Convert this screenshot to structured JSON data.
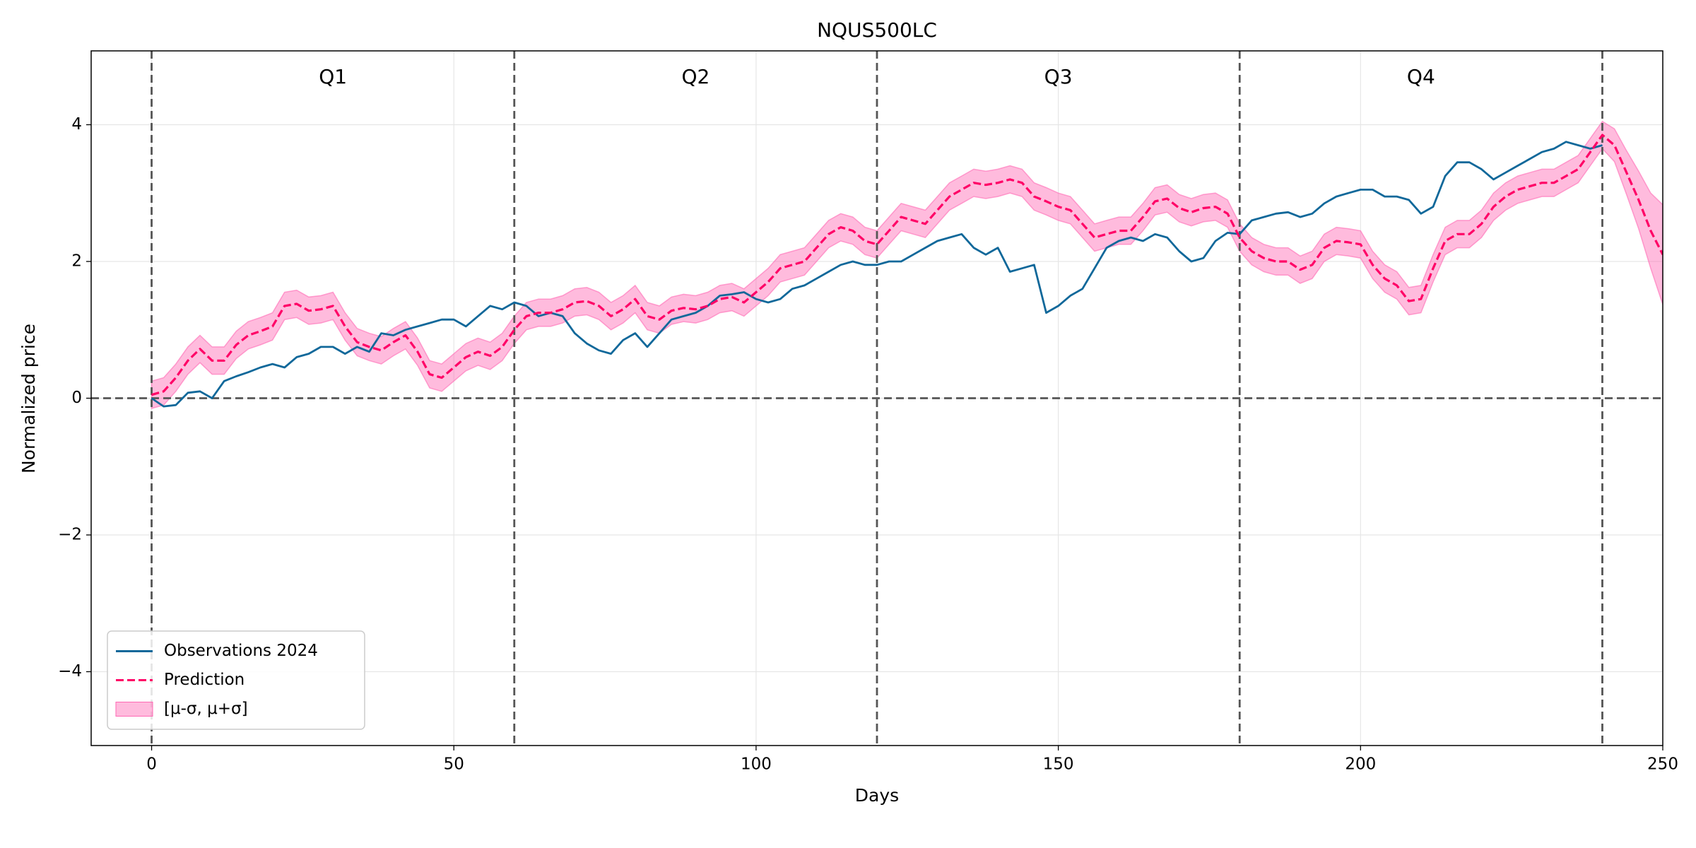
{
  "chart_data": {
    "type": "line",
    "title": "NQUS500LC",
    "xlabel": "Days",
    "ylabel": "Normalized price",
    "xlim": [
      -10,
      250
    ],
    "ylim": [
      -5.08,
      5.08
    ],
    "xticks": [
      0,
      50,
      100,
      150,
      200,
      250
    ],
    "yticks": [
      {
        "value": -4,
        "label": "−4"
      },
      {
        "value": -2,
        "label": "−2"
      },
      0,
      2,
      4
    ],
    "grid": true,
    "legend": "lower left",
    "vlines": [
      0,
      60,
      120,
      180,
      240
    ],
    "hline": 0,
    "annotations": [
      {
        "text": "Q1",
        "x": 30
      },
      {
        "text": "Q2",
        "x": 90
      },
      {
        "text": "Q3",
        "x": 150
      },
      {
        "text": "Q4",
        "x": 210
      }
    ],
    "series": [
      {
        "name": "Observations 2024",
        "color": "#10689a",
        "x": [
          0,
          2,
          4,
          6,
          8,
          10,
          12,
          14,
          16,
          18,
          20,
          22,
          24,
          26,
          28,
          30,
          32,
          34,
          36,
          38,
          40,
          42,
          44,
          46,
          48,
          50,
          52,
          54,
          56,
          58,
          60,
          62,
          64,
          66,
          68,
          70,
          72,
          74,
          76,
          78,
          80,
          82,
          84,
          86,
          88,
          90,
          92,
          94,
          96,
          98,
          100,
          102,
          104,
          106,
          108,
          110,
          112,
          114,
          116,
          118,
          120,
          122,
          124,
          126,
          128,
          130,
          132,
          134,
          136,
          138,
          140,
          142,
          144,
          146,
          148,
          150,
          152,
          154,
          156,
          158,
          160,
          162,
          164,
          166,
          168,
          170,
          172,
          174,
          176,
          178,
          180,
          182,
          184,
          186,
          188,
          190,
          192,
          194,
          196,
          198,
          200,
          202,
          204,
          206,
          208,
          210,
          212,
          214,
          216,
          218,
          220,
          222,
          224,
          226,
          228,
          230,
          232,
          234,
          236,
          238,
          240
        ],
        "values": [
          0.0,
          -0.12,
          -0.1,
          0.08,
          0.1,
          0.0,
          0.25,
          0.32,
          0.38,
          0.45,
          0.5,
          0.45,
          0.6,
          0.65,
          0.75,
          0.75,
          0.65,
          0.75,
          0.68,
          0.95,
          0.92,
          1.0,
          1.05,
          1.1,
          1.15,
          1.15,
          1.05,
          1.2,
          1.35,
          1.3,
          1.4,
          1.35,
          1.2,
          1.25,
          1.2,
          0.95,
          0.8,
          0.7,
          0.65,
          0.85,
          0.95,
          0.75,
          0.95,
          1.15,
          1.2,
          1.25,
          1.35,
          1.5,
          1.52,
          1.55,
          1.45,
          1.4,
          1.45,
          1.6,
          1.65,
          1.75,
          1.85,
          1.95,
          2.0,
          1.95,
          1.95,
          2.0,
          2.0,
          2.1,
          2.2,
          2.3,
          2.35,
          2.4,
          2.2,
          2.1,
          2.2,
          1.85,
          1.9,
          1.95,
          1.25,
          1.35,
          1.5,
          1.6,
          1.9,
          2.2,
          2.3,
          2.35,
          2.3,
          2.4,
          2.35,
          2.15,
          2.0,
          2.05,
          2.3,
          2.42,
          2.4,
          2.6,
          2.65,
          2.7,
          2.72,
          2.65,
          2.7,
          2.85,
          2.95,
          3.0,
          3.05,
          3.05,
          2.95,
          2.95,
          2.9,
          2.7,
          2.8,
          3.25,
          3.45,
          3.45,
          3.35,
          3.2,
          3.3,
          3.4,
          3.5,
          3.6,
          3.65,
          3.75,
          3.7,
          3.65,
          3.7
        ]
      },
      {
        "name": "Prediction",
        "color": "#ff0066",
        "x": [
          0,
          2,
          4,
          6,
          8,
          10,
          12,
          14,
          16,
          18,
          20,
          22,
          24,
          26,
          28,
          30,
          32,
          34,
          36,
          38,
          40,
          42,
          44,
          46,
          48,
          50,
          52,
          54,
          56,
          58,
          60,
          62,
          64,
          66,
          68,
          70,
          72,
          74,
          76,
          78,
          80,
          82,
          84,
          86,
          88,
          90,
          92,
          94,
          96,
          98,
          100,
          102,
          104,
          106,
          108,
          110,
          112,
          114,
          116,
          118,
          120,
          122,
          124,
          126,
          128,
          130,
          132,
          134,
          136,
          138,
          140,
          142,
          144,
          146,
          148,
          150,
          152,
          154,
          156,
          158,
          160,
          162,
          164,
          166,
          168,
          170,
          172,
          174,
          176,
          178,
          180,
          182,
          184,
          186,
          188,
          190,
          192,
          194,
          196,
          198,
          200,
          202,
          204,
          206,
          208,
          210,
          212,
          214,
          216,
          218,
          220,
          222,
          224,
          226,
          228,
          230,
          232,
          234,
          236,
          238,
          240,
          242,
          244,
          246,
          248,
          250
        ],
        "values": [
          0.05,
          0.1,
          0.3,
          0.55,
          0.72,
          0.55,
          0.55,
          0.78,
          0.92,
          0.98,
          1.05,
          1.35,
          1.38,
          1.28,
          1.3,
          1.35,
          1.05,
          0.82,
          0.75,
          0.7,
          0.82,
          0.92,
          0.68,
          0.35,
          0.3,
          0.45,
          0.6,
          0.68,
          0.62,
          0.75,
          1.0,
          1.2,
          1.25,
          1.25,
          1.3,
          1.4,
          1.42,
          1.35,
          1.2,
          1.3,
          1.45,
          1.2,
          1.15,
          1.28,
          1.32,
          1.3,
          1.35,
          1.45,
          1.48,
          1.4,
          1.55,
          1.7,
          1.9,
          1.95,
          2.0,
          2.2,
          2.4,
          2.5,
          2.45,
          2.3,
          2.25,
          2.45,
          2.65,
          2.6,
          2.55,
          2.75,
          2.95,
          3.05,
          3.15,
          3.12,
          3.15,
          3.2,
          3.15,
          2.95,
          2.88,
          2.8,
          2.75,
          2.55,
          2.35,
          2.4,
          2.45,
          2.45,
          2.65,
          2.88,
          2.92,
          2.78,
          2.72,
          2.78,
          2.8,
          2.7,
          2.35,
          2.15,
          2.05,
          2.0,
          2.0,
          1.88,
          1.95,
          2.2,
          2.3,
          2.28,
          2.25,
          1.95,
          1.75,
          1.65,
          1.42,
          1.45,
          1.9,
          2.3,
          2.4,
          2.4,
          2.55,
          2.8,
          2.95,
          3.05,
          3.1,
          3.15,
          3.15,
          3.25,
          3.35,
          3.6,
          3.85,
          3.7,
          3.3,
          2.9,
          2.45,
          2.1
        ],
        "sigma": [
          0.2,
          0.2,
          0.2,
          0.2,
          0.2,
          0.2,
          0.2,
          0.2,
          0.2,
          0.2,
          0.2,
          0.2,
          0.2,
          0.2,
          0.2,
          0.2,
          0.2,
          0.2,
          0.2,
          0.2,
          0.2,
          0.2,
          0.2,
          0.2,
          0.2,
          0.2,
          0.2,
          0.2,
          0.2,
          0.2,
          0.2,
          0.2,
          0.2,
          0.2,
          0.2,
          0.2,
          0.2,
          0.2,
          0.2,
          0.2,
          0.2,
          0.2,
          0.2,
          0.2,
          0.2,
          0.2,
          0.2,
          0.2,
          0.2,
          0.2,
          0.2,
          0.2,
          0.2,
          0.2,
          0.2,
          0.2,
          0.2,
          0.2,
          0.2,
          0.2,
          0.2,
          0.2,
          0.2,
          0.2,
          0.2,
          0.2,
          0.2,
          0.2,
          0.2,
          0.2,
          0.2,
          0.2,
          0.2,
          0.2,
          0.2,
          0.2,
          0.2,
          0.2,
          0.2,
          0.2,
          0.2,
          0.2,
          0.2,
          0.2,
          0.2,
          0.2,
          0.2,
          0.2,
          0.2,
          0.2,
          0.2,
          0.2,
          0.2,
          0.2,
          0.2,
          0.2,
          0.2,
          0.2,
          0.2,
          0.2,
          0.2,
          0.2,
          0.2,
          0.2,
          0.2,
          0.2,
          0.2,
          0.2,
          0.2,
          0.2,
          0.2,
          0.2,
          0.2,
          0.2,
          0.2,
          0.2,
          0.2,
          0.2,
          0.2,
          0.2,
          0.2,
          0.24,
          0.32,
          0.42,
          0.55,
          0.73
        ],
        "band": {
          "name": "[μ-σ, μ+σ]",
          "color": "#ff69b4"
        }
      }
    ]
  }
}
